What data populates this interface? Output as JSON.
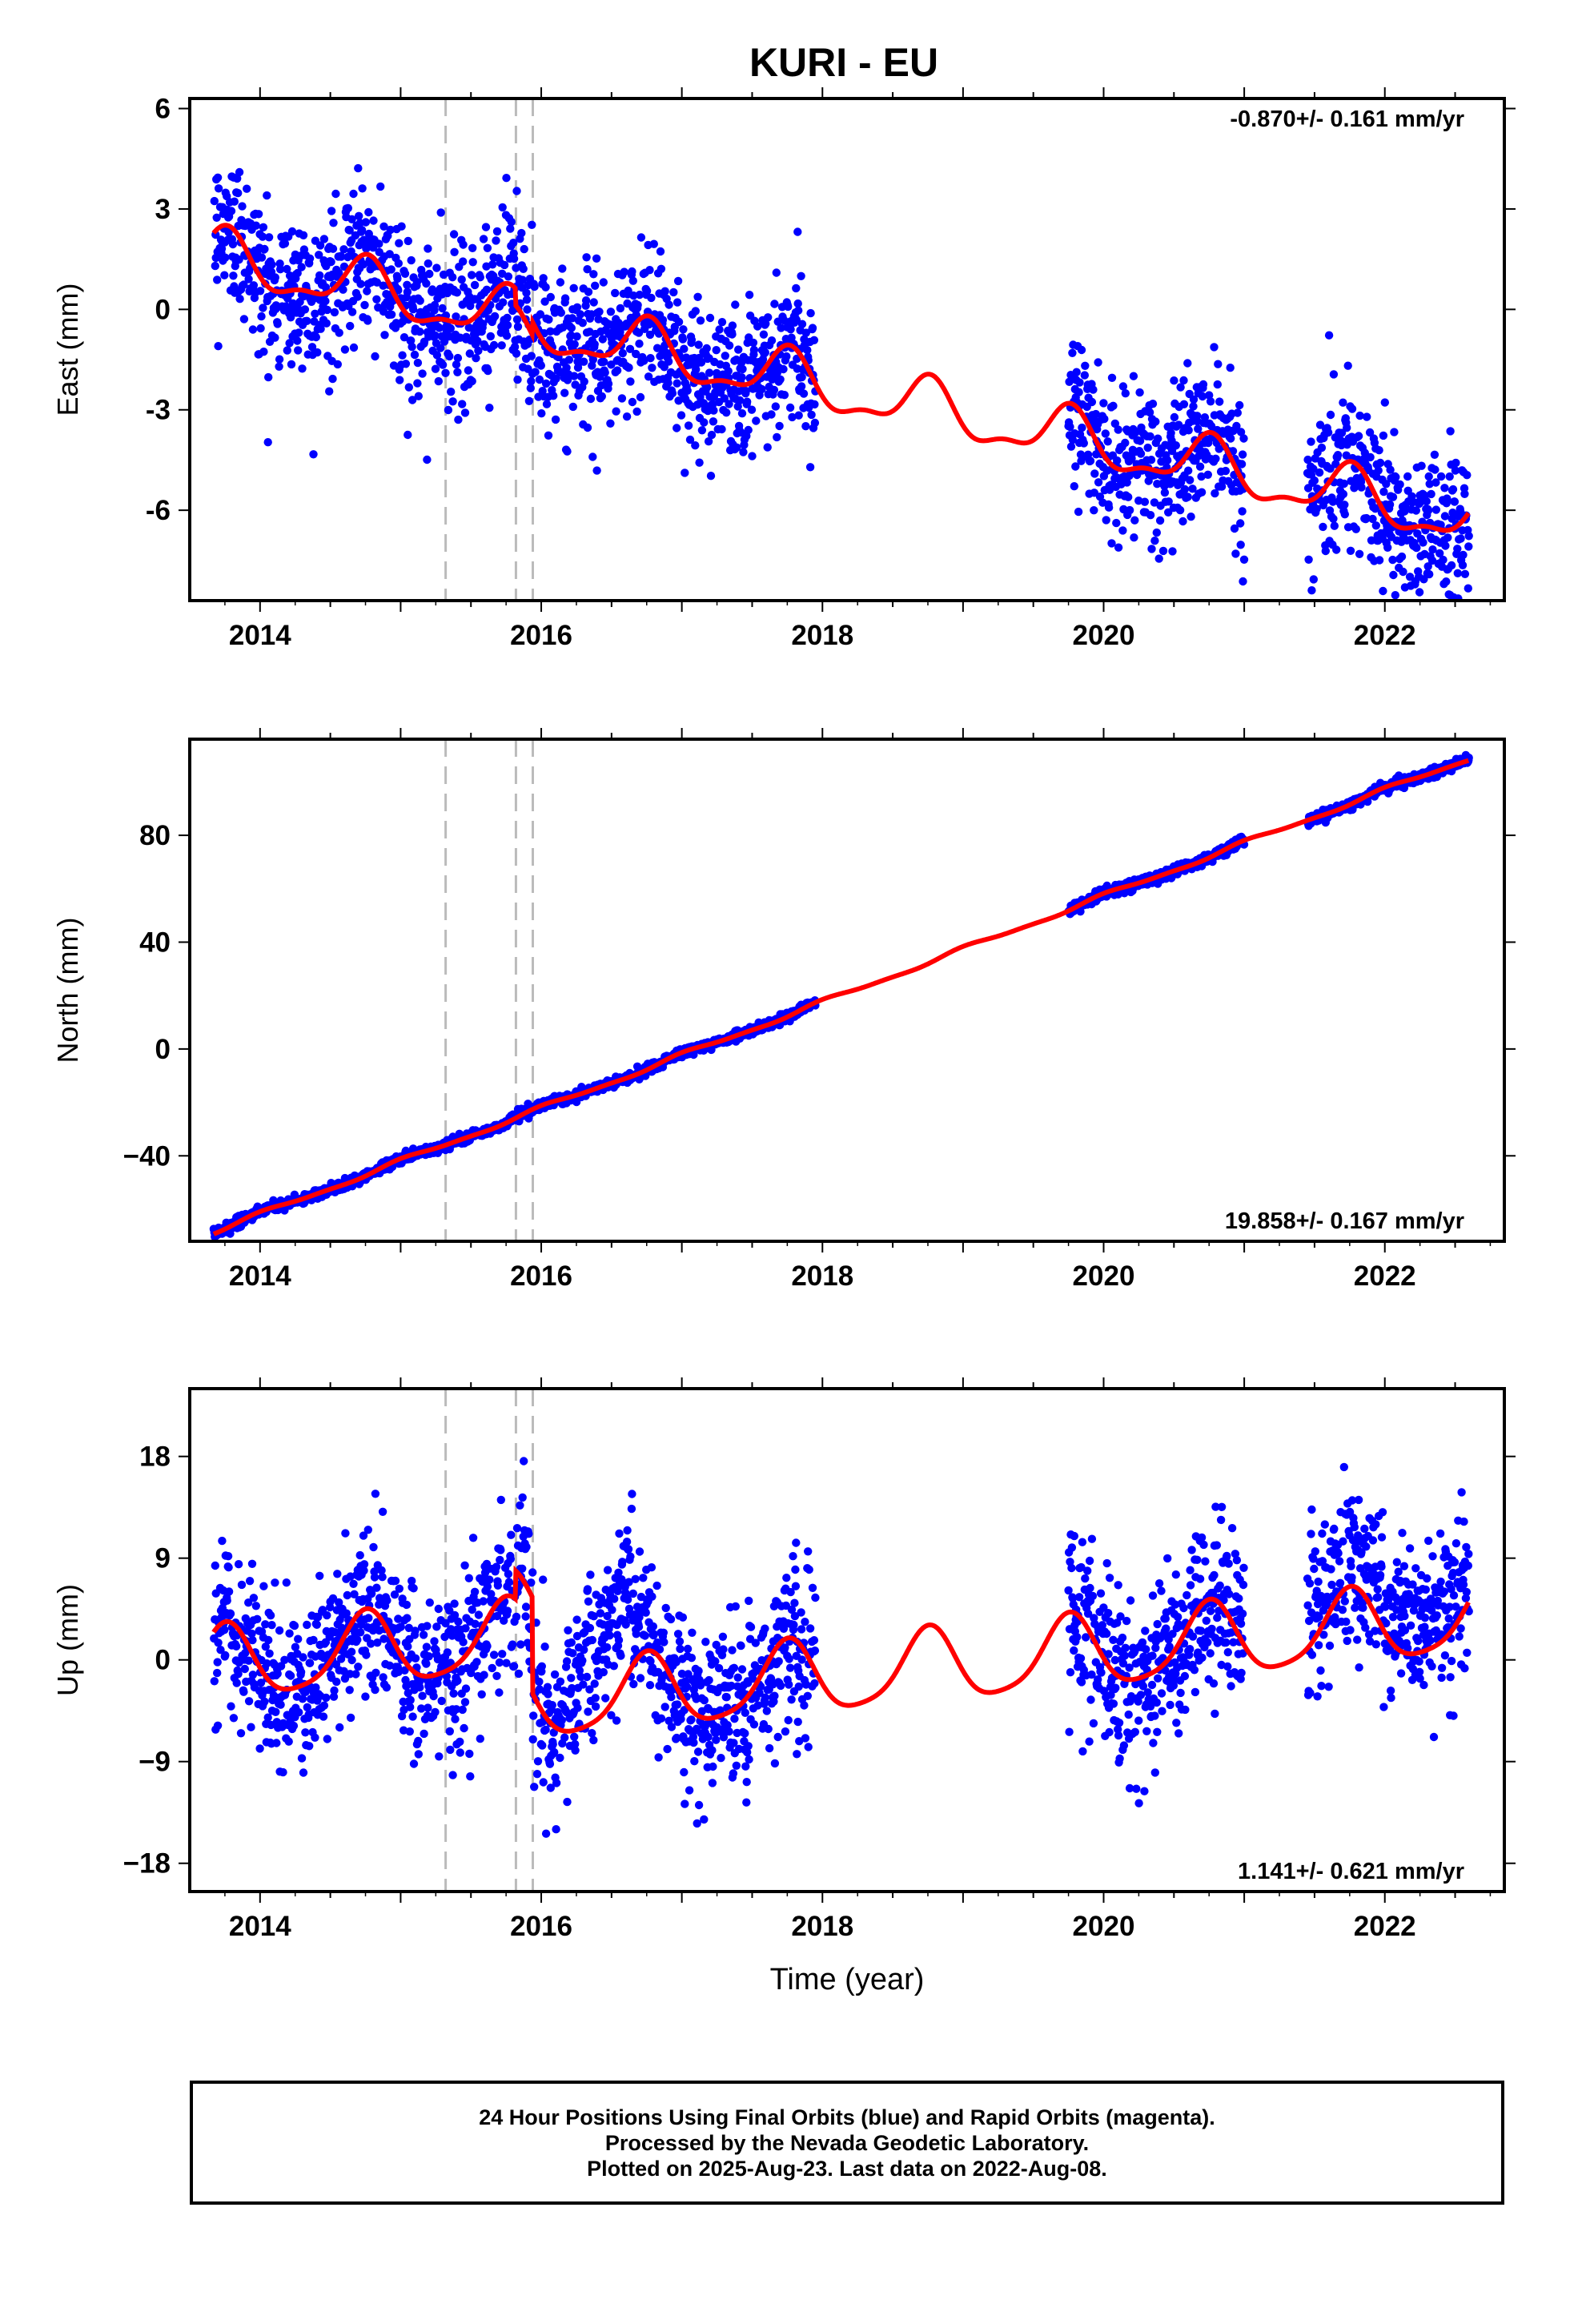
{
  "title": "KURI - EU",
  "xlabel": "Time (year)",
  "footer": {
    "line1": "24 Hour Positions Using Final Orbits (blue) and Rapid Orbits (magenta).",
    "line2": "Processed by the Nevada Geodetic Laboratory.",
    "line3": "Plotted on 2025-Aug-23. Last data on 2022-Aug-08."
  },
  "colors": {
    "points": "#0000ff",
    "model": "#ff0000",
    "steps": "#bbbbbb",
    "frame": "#000000"
  },
  "chart_data": [
    {
      "type": "scatter",
      "component": "east",
      "ylabel": "East (mm)",
      "rate_label": "-0.870+/- 0.161 mm/yr",
      "rate_position": "top-right",
      "xlim": [
        2013.5,
        2022.85
      ],
      "ylim": [
        -8.7,
        6.3
      ],
      "xticks": [
        2014,
        2016,
        2018,
        2020,
        2022
      ],
      "xtick_labels": [
        "2014",
        "2016",
        "2018",
        "2020",
        "2022"
      ],
      "yticks": [
        -6,
        -3,
        0,
        3,
        6
      ],
      "ytick_labels": [
        "-6",
        "-3",
        "0",
        "3",
        "6"
      ],
      "step_lines_x": [
        2015.32,
        2015.82,
        2015.94
      ],
      "data_segments": [
        [
          2013.67,
          2017.95
        ],
        [
          2019.75,
          2021.0
        ],
        [
          2021.45,
          2022.6
        ]
      ],
      "rate": -0.87,
      "offset": 1.55,
      "annual_amp": 0.75,
      "semiannual_amp": 0.3,
      "phase": 0.5,
      "offsets": [
        {
          "x": 2015.82,
          "dy": -0.5
        },
        {
          "x": 2015.94,
          "dy": 0.4
        }
      ],
      "noise": 1.15
    },
    {
      "type": "scatter",
      "component": "north",
      "ylabel": "North (mm)",
      "rate_label": "19.858+/- 0.167 mm/yr",
      "rate_position": "bottom-right",
      "xlim": [
        2013.5,
        2022.85
      ],
      "ylim": [
        -72,
        116
      ],
      "xticks": [
        2014,
        2016,
        2018,
        2020,
        2022
      ],
      "xtick_labels": [
        "2014",
        "2016",
        "2018",
        "2020",
        "2022"
      ],
      "yticks": [
        -40,
        0,
        40,
        80
      ],
      "ytick_labels": [
        "−40",
        "0",
        "40",
        "80"
      ],
      "step_lines_x": [
        2015.32,
        2015.82,
        2015.94
      ],
      "data_segments": [
        [
          2013.67,
          2017.95
        ],
        [
          2019.75,
          2021.0
        ],
        [
          2021.45,
          2022.6
        ]
      ],
      "rate": 19.858,
      "offset": -68.5,
      "annual_amp": 0.8,
      "semiannual_amp": 0.3,
      "phase": 0.2,
      "offsets": [],
      "noise": 0.9
    },
    {
      "type": "scatter",
      "component": "up",
      "ylabel": "Up (mm)",
      "rate_label": "1.141+/- 0.621 mm/yr",
      "rate_position": "bottom-right",
      "xlim": [
        2013.5,
        2022.85
      ],
      "ylim": [
        -20.5,
        24
      ],
      "xticks": [
        2014,
        2016,
        2018,
        2020,
        2022
      ],
      "xtick_labels": [
        "2014",
        "2016",
        "2018",
        "2020",
        "2022"
      ],
      "yticks": [
        -18,
        -9,
        0,
        9,
        18
      ],
      "ytick_labels": [
        "−18",
        "−9",
        "0",
        "9",
        "18"
      ],
      "step_lines_x": [
        2015.32,
        2015.82,
        2015.94
      ],
      "data_segments": [
        [
          2013.67,
          2017.95
        ],
        [
          2019.75,
          2021.0
        ],
        [
          2021.45,
          2022.6
        ]
      ],
      "rate": 1.141,
      "offset": -0.5,
      "annual_amp": 3.2,
      "semiannual_amp": 0.6,
      "phase": 0.5,
      "offsets": [
        {
          "x": 2015.82,
          "dy": 2.5
        },
        {
          "x": 2015.94,
          "dy": -8.5
        }
      ],
      "noise": 3.6
    }
  ]
}
